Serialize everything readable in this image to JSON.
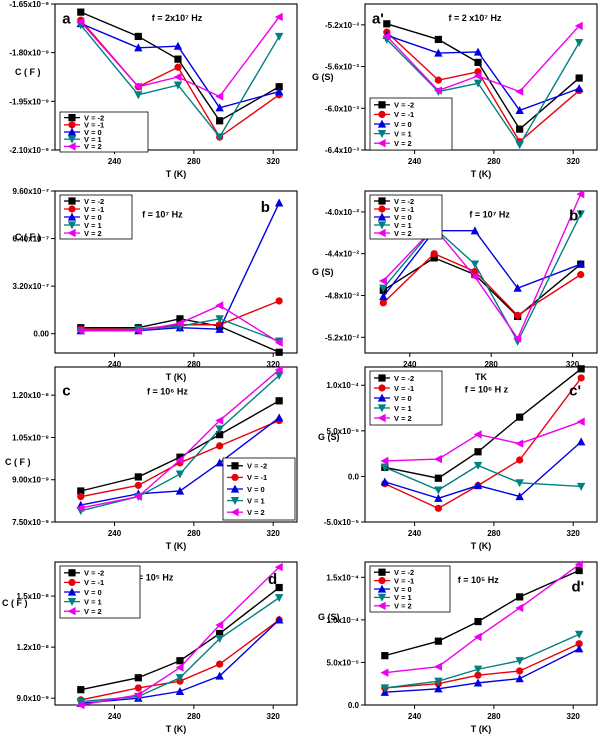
{
  "figure": {
    "series_names": [
      "V = -2",
      "V = -1",
      "V = 0",
      "V = 1",
      "V = 2"
    ],
    "series_colors": [
      "#000000",
      "#e8000c",
      "#0000e0",
      "#008080",
      "#ee00ee"
    ],
    "series_markers": [
      "square",
      "circle",
      "triangle-up",
      "triangle-down",
      "triangle-left"
    ]
  },
  "chart_data": [
    {
      "id": "a",
      "panel_label": "a",
      "type": "line",
      "frequency": "f  =  2x10⁷ Hz",
      "xlabel": "T (K)",
      "ylabel": "C  ( F )",
      "ylabel_mode": "block",
      "x": [
        223,
        252,
        272,
        293,
        323
      ],
      "xlim": [
        210,
        332
      ],
      "ylim": [
        -2.1e-09,
        -1.65e-09
      ],
      "xticks": [
        "240",
        "280",
        "320"
      ],
      "xtick_values": [
        240,
        280,
        320
      ],
      "yticks": [
        "-1.65x10⁻⁹",
        "-1.80x10⁻⁹",
        "-1.95x10⁻⁹",
        "-2.10x10⁻⁹"
      ],
      "ytick_values": [
        -1.65e-09,
        -1.8e-09,
        -1.95e-09,
        -2.1e-09
      ],
      "legend_position": "bottom-left",
      "series": [
        {
          "name": "V = -2",
          "values": [
            -1.675e-09,
            -1.75e-09,
            -1.82e-09,
            -2.01e-09,
            -1.905e-09
          ]
        },
        {
          "name": "V = -1",
          "values": [
            -1.7e-09,
            -1.905e-09,
            -1.845e-09,
            -2.06e-09,
            -1.93e-09
          ]
        },
        {
          "name": "V = 0",
          "values": [
            -1.71e-09,
            -1.785e-09,
            -1.78e-09,
            -1.97e-09,
            -1.92e-09
          ]
        },
        {
          "name": "V = 1",
          "values": [
            -1.715e-09,
            -1.93e-09,
            -1.9e-09,
            -2.06e-09,
            -1.75e-09
          ]
        },
        {
          "name": "V = 2",
          "values": [
            -1.705e-09,
            -1.905e-09,
            -1.875e-09,
            -1.935e-09,
            -1.69e-09
          ]
        }
      ]
    },
    {
      "id": "a2",
      "panel_label": "a'",
      "type": "line",
      "frequency": "f  =  2 x10⁷ Hz",
      "xlabel": "T (K)",
      "ylabel": "G (S)",
      "ylabel_mode": "block",
      "x": [
        226,
        252,
        272,
        293,
        323
      ],
      "xlim": [
        215,
        332
      ],
      "ylim": [
        -0.0064,
        -0.005
      ],
      "xticks": [
        "240",
        "280",
        "320"
      ],
      "xtick_values": [
        240,
        280,
        320
      ],
      "yticks": [
        "-5.2x10⁻³",
        "-5.6x10⁻³",
        "-6.0x10⁻³",
        "-6.4x10⁻³"
      ],
      "ytick_values": [
        -0.0052,
        -0.0056,
        -0.006,
        -0.0064
      ],
      "legend_position": "bottom-left",
      "series": [
        {
          "name": "V = -2",
          "values": [
            -0.00519,
            -0.00534,
            -0.00556,
            -0.0062,
            -0.00571
          ]
        },
        {
          "name": "V = -1",
          "values": [
            -0.00527,
            -0.00573,
            -0.00565,
            -0.00632,
            -0.00583
          ]
        },
        {
          "name": "V = 0",
          "values": [
            -0.0053,
            -0.00547,
            -0.00546,
            -0.00602,
            -0.00581
          ]
        },
        {
          "name": "V = 1",
          "values": [
            -0.00534,
            -0.00584,
            -0.00576,
            -0.00635,
            -0.00537
          ]
        },
        {
          "name": "V = 2",
          "values": [
            -0.00531,
            -0.00583,
            -0.00569,
            -0.00584,
            -0.00521
          ]
        }
      ]
    },
    {
      "id": "b",
      "panel_label": "b",
      "type": "line",
      "frequency": "f  =  10⁷ Hz",
      "xlabel": "T (K)",
      "ylabel": "C  ( F )",
      "ylabel_mode": "block",
      "x": [
        223,
        252,
        273,
        293,
        323
      ],
      "xlim": [
        210,
        332
      ],
      "ylim": [
        -1.3e-07,
        9.6e-07
      ],
      "xticks": [
        "240",
        "280",
        "320"
      ],
      "xtick_values": [
        240,
        280,
        320
      ],
      "yticks": [
        "9.60x10⁻⁷",
        "6.40x10⁻⁷",
        "3.20x10⁻⁷",
        "0.00"
      ],
      "ytick_values": [
        9.6e-07,
        6.4e-07,
        3.2e-07,
        0
      ],
      "legend_position": "top-left",
      "series": [
        {
          "name": "V = -2",
          "values": [
            4e-08,
            4e-08,
            1e-07,
            5e-08,
            -1.25e-07
          ]
        },
        {
          "name": "V = -1",
          "values": [
            3e-08,
            3e-08,
            6e-08,
            6e-08,
            2.2e-07
          ]
        },
        {
          "name": "V = 0",
          "values": [
            2e-08,
            2e-08,
            4e-08,
            3e-08,
            8.8e-07
          ]
        },
        {
          "name": "V = 1",
          "values": [
            2e-08,
            3e-08,
            5e-08,
            1e-07,
            -5e-08
          ]
        },
        {
          "name": "V = 2",
          "values": [
            2e-08,
            2e-08,
            7e-08,
            1.9e-07,
            -6e-08
          ]
        }
      ]
    },
    {
      "id": "b2",
      "panel_label": "b'",
      "type": "line",
      "frequency": "f  =  10⁷ Hz",
      "xlabel": "TK",
      "ylabel": "G (S)",
      "ylabel_mode": "block",
      "x": [
        227,
        252,
        272,
        293,
        324
      ],
      "xlim": [
        218,
        332
      ],
      "ylim": [
        -0.0535,
        -0.038
      ],
      "xticks": [
        "240",
        "280",
        "320"
      ],
      "xtick_values": [
        240,
        280,
        320
      ],
      "yticks": [
        "-4.0x10⁻²",
        "-4.4x10⁻²",
        "-4.8x10⁻²",
        "-5.2x10⁻²"
      ],
      "ytick_values": [
        -0.04,
        -0.044,
        -0.048,
        -0.052
      ],
      "legend_position": "top-left",
      "series": [
        {
          "name": "V = -2",
          "values": [
            -0.0475,
            -0.0444,
            -0.046,
            -0.05,
            -0.045
          ]
        },
        {
          "name": "V = -1",
          "values": [
            -0.0487,
            -0.044,
            -0.0457,
            -0.0499,
            -0.046
          ]
        },
        {
          "name": "V = 0",
          "values": [
            -0.0481,
            -0.0418,
            -0.0418,
            -0.0473,
            -0.045
          ]
        },
        {
          "name": "V = 1",
          "values": [
            -0.0473,
            -0.0415,
            -0.045,
            -0.0524,
            -0.0402
          ]
        },
        {
          "name": "V = 2",
          "values": [
            -0.0466,
            -0.0415,
            -0.0462,
            -0.0521,
            -0.0383
          ]
        }
      ]
    },
    {
      "id": "c",
      "panel_label": "c",
      "type": "line",
      "frequency": "f  =  10⁶ Hz",
      "xlabel": "T (K)",
      "ylabel": "C  ( F )",
      "ylabel_mode": "inline",
      "x": [
        223,
        252,
        273,
        293,
        323
      ],
      "xlim": [
        210,
        332
      ],
      "ylim": [
        7.5e-09,
        1.3e-08
      ],
      "xticks": [
        "240",
        "280",
        "320"
      ],
      "xtick_values": [
        240,
        280,
        320
      ],
      "yticks": [
        "1.20x10⁻⁸",
        "1.05x10⁻⁸",
        "9.00x10⁻⁹",
        "7.50x10⁻⁹"
      ],
      "ytick_values": [
        1.2e-08,
        1.05e-08,
        9e-09,
        7.5e-09
      ],
      "legend_position": "bottom-right",
      "series": [
        {
          "name": "V = -2",
          "values": [
            8.6e-09,
            9.1e-09,
            9.8e-09,
            1.06e-08,
            1.18e-08
          ]
        },
        {
          "name": "V = -1",
          "values": [
            8.4e-09,
            8.8e-09,
            9.6e-09,
            1.02e-08,
            1.11e-08
          ]
        },
        {
          "name": "V = 0",
          "values": [
            8.1e-09,
            8.5e-09,
            8.6e-09,
            9.6e-09,
            1.12e-08
          ]
        },
        {
          "name": "V = 1",
          "values": [
            7.9e-09,
            8.4e-09,
            9.2e-09,
            1.08e-08,
            1.27e-08
          ]
        },
        {
          "name": "V = 2",
          "values": [
            8e-09,
            8.4e-09,
            9.7e-09,
            1.11e-08,
            1.29e-08
          ]
        }
      ]
    },
    {
      "id": "c2",
      "panel_label": "c'",
      "type": "line",
      "frequency": "f  =  10⁶ H z",
      "xlabel": "T (K)",
      "ylabel": "G (S)",
      "ylabel_mode": "block",
      "x": [
        225,
        252,
        272,
        293,
        324
      ],
      "xlim": [
        215,
        332
      ],
      "ylim": [
        -5e-05,
        0.00012
      ],
      "xticks": [
        "240",
        "280",
        "320"
      ],
      "xtick_values": [
        240,
        280,
        320
      ],
      "yticks": [
        "1.0x10⁻⁴",
        "5.0x10⁻⁵",
        "0.0",
        "-5.0x10⁻⁵"
      ],
      "ytick_values": [
        0.0001,
        5e-05,
        0,
        -5e-05
      ],
      "legend_position": "top-left",
      "series": [
        {
          "name": "V = -2",
          "values": [
            1e-05,
            -2e-06,
            2.7e-05,
            6.5e-05,
            0.000118
          ]
        },
        {
          "name": "V = -1",
          "values": [
            -8e-06,
            -3.5e-05,
            -1e-05,
            1.8e-05,
            0.000108
          ]
        },
        {
          "name": "V = 0",
          "values": [
            -6e-06,
            -2.4e-05,
            -1e-05,
            -2.2e-05,
            3.8e-05
          ]
        },
        {
          "name": "V = 1",
          "values": [
            1e-05,
            -1.5e-05,
            1.2e-05,
            -7e-06,
            -1.1e-05
          ]
        },
        {
          "name": "V = 2",
          "values": [
            1.7e-05,
            1.9e-05,
            4.6e-05,
            3.6e-05,
            6e-05
          ]
        }
      ]
    },
    {
      "id": "d",
      "panel_label": "d",
      "type": "line",
      "frequency": "f  =  10⁵ Hz",
      "xlabel": "T (K)",
      "ylabel": "C  ( F )",
      "ylabel_mode": "inline",
      "x": [
        223,
        252,
        273,
        293,
        323
      ],
      "xlim": [
        210,
        332
      ],
      "ylim": [
        8.6e-09,
        1.7e-08
      ],
      "xticks": [
        "240",
        "280",
        "320"
      ],
      "xtick_values": [
        240,
        280,
        320
      ],
      "yticks": [
        "1.5x10⁻⁸",
        "1.2x10⁻⁸",
        "9.0x10⁻⁹"
      ],
      "ytick_values": [
        1.5e-08,
        1.2e-08,
        9e-09
      ],
      "legend_position": "top-left",
      "series": [
        {
          "name": "V = -2",
          "values": [
            9.5e-09,
            1.02e-08,
            1.12e-08,
            1.28e-08,
            1.55e-08
          ]
        },
        {
          "name": "V = -1",
          "values": [
            8.9e-09,
            9.6e-09,
            1e-08,
            1.1e-08,
            1.36e-08
          ]
        },
        {
          "name": "V = 0",
          "values": [
            8.7e-09,
            9e-09,
            9.4e-09,
            1.03e-08,
            1.36e-08
          ]
        },
        {
          "name": "V = 1",
          "values": [
            8.8e-09,
            9.1e-09,
            1.02e-08,
            1.25e-08,
            1.49e-08
          ]
        },
        {
          "name": "V = 2",
          "values": [
            8.6e-09,
            9.2e-09,
            1.08e-08,
            1.33e-08,
            1.67e-08
          ]
        }
      ]
    },
    {
      "id": "d2",
      "panel_label": "d'",
      "type": "line",
      "frequency": "f  =  10⁵ Hz",
      "xlabel": "T (K)",
      "ylabel": "G (S)",
      "ylabel_mode": "block",
      "x": [
        225,
        252,
        272,
        293,
        323
      ],
      "xlim": [
        215,
        332
      ],
      "ylim": [
        0,
        0.000168
      ],
      "xticks": [
        "240",
        "280",
        "320"
      ],
      "xtick_values": [
        240,
        280,
        320
      ],
      "yticks": [
        "1.5x10⁻⁴",
        "1.0x10⁻⁴",
        "5.0x10⁻⁵",
        "0.0"
      ],
      "ytick_values": [
        0.00015,
        0.0001,
        5e-05,
        0
      ],
      "legend_position": "top-left",
      "series": [
        {
          "name": "V = -2",
          "values": [
            5.8e-05,
            7.5e-05,
            9.8e-05,
            0.000127,
            0.000158
          ]
        },
        {
          "name": "V = -1",
          "values": [
            2e-05,
            2.5e-05,
            3.5e-05,
            4e-05,
            7.2e-05
          ]
        },
        {
          "name": "V = 0",
          "values": [
            1.5e-05,
            1.9e-05,
            2.6e-05,
            3.1e-05,
            6.6e-05
          ]
        },
        {
          "name": "V = 1",
          "values": [
            2e-05,
            2.8e-05,
            4.2e-05,
            5.2e-05,
            8.3e-05
          ]
        },
        {
          "name": "V = 2",
          "values": [
            3.8e-05,
            4.5e-05,
            8e-05,
            0.000114,
            0.000165
          ]
        }
      ]
    }
  ]
}
